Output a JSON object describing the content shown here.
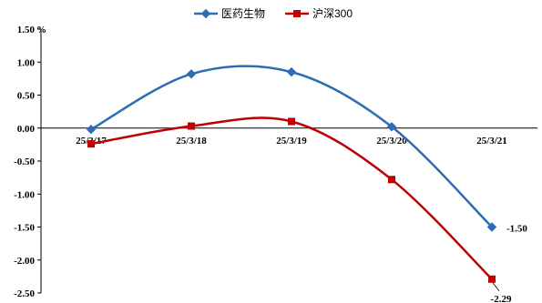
{
  "chart_data": {
    "type": "line",
    "title": "",
    "xlabel": "",
    "ylabel": "",
    "y_unit": "%",
    "ylim": [
      -2.5,
      1.5
    ],
    "y_ticks": [
      "1.50",
      "1.00",
      "0.50",
      "0.00",
      "-0.50",
      "-1.00",
      "-1.50",
      "-2.00",
      "-2.50"
    ],
    "categories": [
      "25/3/17",
      "25/3/18",
      "25/3/19",
      "25/3/20",
      "25/3/21"
    ],
    "legend_position": "top",
    "grid": false,
    "series": [
      {
        "name": "医药生物",
        "color": "#2E6DB4",
        "marker": "diamond",
        "values": [
          -0.02,
          0.82,
          0.85,
          0.02,
          -1.5
        ]
      },
      {
        "name": "沪深300",
        "color": "#C00000",
        "marker": "square",
        "values": [
          -0.24,
          0.03,
          0.1,
          -0.78,
          -2.29
        ]
      }
    ],
    "annotations": [
      {
        "series": 0,
        "index": 4,
        "text": "-1.50"
      },
      {
        "series": 1,
        "index": 4,
        "text": "-2.29"
      }
    ]
  }
}
